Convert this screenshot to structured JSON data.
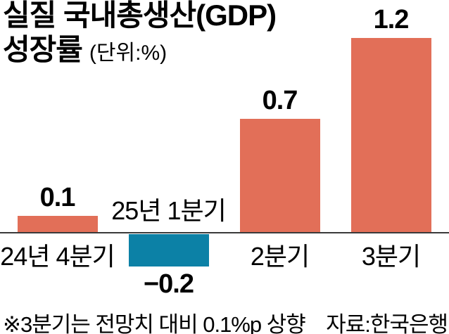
{
  "title": {
    "line1": "실질 국내총생산(GDP)",
    "line2": "성장률",
    "unit": "(단위:%)"
  },
  "footer": {
    "note": "※3분기는 전망치 대비 0.1%p 상향",
    "source": "자료:한국은행"
  },
  "colors": {
    "positive_bar": "#E26F58",
    "negative_bar": "#0C81A6",
    "axis": "#3A3A3A",
    "text": "#000000",
    "background": "#FFFFFF"
  },
  "chart_data": {
    "type": "bar",
    "title": "실질 국내총생산(GDP) 성장률",
    "unit_label": "(단위:%)",
    "categories": [
      "24년 4분기",
      "25년 1분기",
      "2분기",
      "3분기"
    ],
    "values": [
      0.1,
      -0.2,
      0.7,
      1.2
    ],
    "value_labels": [
      "0.1",
      "−0.2",
      "0.7",
      "1.2"
    ],
    "bar_colors": [
      "#E26F58",
      "#0C81A6",
      "#E26F58",
      "#E26F58"
    ],
    "ylim": [
      -0.2,
      1.2
    ],
    "grid": false,
    "legend": false,
    "annotation": "※3분기는 전망치 대비 0.1%p 상향",
    "source": "자료:한국은행"
  }
}
